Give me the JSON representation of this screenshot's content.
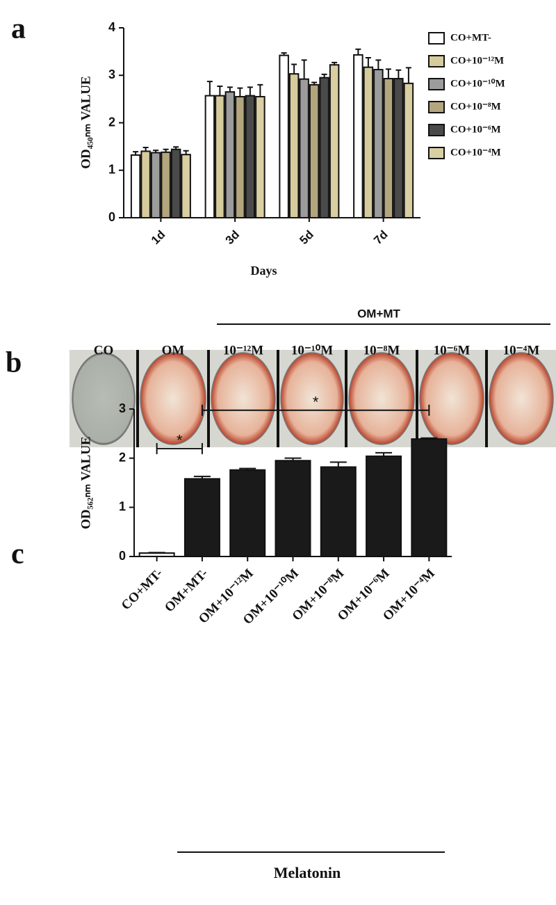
{
  "chart_data": [
    {
      "type": "grouped_bar",
      "panel": "a",
      "y_label": "OD₄₅₀ₙₘ VALUE",
      "x_label": "Days",
      "categories": [
        "1d",
        "3d",
        "5d",
        "7d"
      ],
      "series": [
        {
          "name": "CO+MT-",
          "color": "#ffffff",
          "values": [
            1.32,
            2.57,
            3.42,
            3.43
          ],
          "errors": [
            0.07,
            0.3,
            0.05,
            0.12
          ]
        },
        {
          "name": "CO+10⁻¹²M",
          "color": "#d6cb9c",
          "values": [
            1.4,
            2.57,
            3.03,
            3.17
          ],
          "errors": [
            0.08,
            0.2,
            0.2,
            0.2
          ]
        },
        {
          "name": "CO+10⁻¹⁰M",
          "color": "#9c9c9c",
          "values": [
            1.37,
            2.65,
            2.92,
            3.12
          ],
          "errors": [
            0.05,
            0.1,
            0.4,
            0.2
          ]
        },
        {
          "name": "CO+10⁻⁸M",
          "color": "#b3a67e",
          "values": [
            1.38,
            2.55,
            2.8,
            2.93
          ],
          "errors": [
            0.06,
            0.18,
            0.05,
            0.2
          ]
        },
        {
          "name": "CO+10⁻⁶M",
          "color": "#4a4a4a",
          "values": [
            1.44,
            2.57,
            2.95,
            2.93
          ],
          "errors": [
            0.05,
            0.18,
            0.07,
            0.18
          ]
        },
        {
          "name": "CO+10⁻⁴M",
          "color": "#d9cfa3",
          "values": [
            1.33,
            2.55,
            3.22,
            2.83
          ],
          "errors": [
            0.08,
            0.25,
            0.05,
            0.33
          ]
        }
      ],
      "ylim": [
        0,
        4
      ],
      "yticks": [
        0,
        1,
        2,
        3,
        4
      ],
      "legend": "right"
    },
    {
      "type": "bar",
      "panel": "c",
      "y_label": "OD₅₆₂ₙₘ VALUE",
      "categories": [
        "CO+MT-",
        "OM+MT-",
        "OM+10⁻¹²M",
        "OM+10⁻¹⁰M",
        "OM+10⁻⁸M",
        "OM+10⁻⁶M",
        "OM+10⁻⁴M"
      ],
      "values": [
        0.07,
        1.58,
        1.76,
        1.95,
        1.82,
        2.04,
        2.39
      ],
      "errors": [
        0.01,
        0.05,
        0.03,
        0.05,
        0.1,
        0.07,
        0.02
      ],
      "colors": [
        "#eeeeee",
        "#1a1a1a",
        "#1a1a1a",
        "#1a1a1a",
        "#1a1a1a",
        "#1a1a1a",
        "#1a1a1a"
      ],
      "ylim": [
        0,
        3
      ],
      "yticks": [
        0,
        1,
        2,
        3
      ],
      "annotations": [
        {
          "text": "*",
          "from": 0,
          "to": 1
        },
        {
          "text": "*",
          "from": 1,
          "to": 6
        }
      ],
      "group_label": "Melatonin"
    }
  ],
  "image_panel": {
    "panel": "b",
    "group_label": "OM+MT",
    "wells": [
      "CO",
      "OM",
      "10⁻¹²M",
      "10⁻¹⁰M",
      "10⁻⁸M",
      "10⁻⁶M",
      "10⁻⁴M"
    ]
  }
}
